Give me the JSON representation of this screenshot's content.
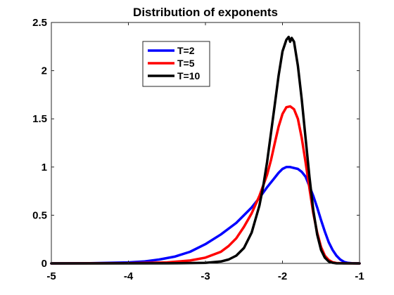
{
  "chart_data": {
    "type": "line",
    "title": "Distribution of exponents",
    "xlabel": "",
    "ylabel": "",
    "xlim": [
      -5,
      -1
    ],
    "ylim": [
      0,
      2.5
    ],
    "xticks": [
      "-5",
      "-4",
      "-3",
      "-2",
      "-1"
    ],
    "yticks": [
      "0",
      "0.5",
      "1",
      "1.5",
      "2",
      "2.5"
    ],
    "grid": false,
    "legend_position": "upper-left",
    "series": [
      {
        "name": "T=2",
        "color": "#0000ff",
        "x": [
          -5.0,
          -4.5,
          -4.0,
          -3.8,
          -3.6,
          -3.4,
          -3.2,
          -3.0,
          -2.8,
          -2.6,
          -2.5,
          -2.4,
          -2.3,
          -2.2,
          -2.1,
          -2.05,
          -2.0,
          -1.95,
          -1.9,
          -1.85,
          -1.8,
          -1.75,
          -1.7,
          -1.65,
          -1.6,
          -1.55,
          -1.5,
          -1.45,
          -1.4,
          -1.35,
          -1.3,
          -1.25,
          -1.2,
          -1.15,
          -1.1,
          -1.0
        ],
        "y": [
          0.0,
          0.002,
          0.01,
          0.02,
          0.04,
          0.07,
          0.12,
          0.2,
          0.3,
          0.42,
          0.5,
          0.58,
          0.68,
          0.79,
          0.89,
          0.94,
          0.98,
          1.0,
          1.0,
          0.99,
          0.98,
          0.95,
          0.9,
          0.8,
          0.7,
          0.58,
          0.45,
          0.33,
          0.22,
          0.14,
          0.08,
          0.04,
          0.015,
          0.005,
          0.002,
          0.0
        ]
      },
      {
        "name": "T=5",
        "color": "#ff0000",
        "x": [
          -5.0,
          -4.0,
          -3.5,
          -3.2,
          -3.0,
          -2.8,
          -2.7,
          -2.6,
          -2.5,
          -2.4,
          -2.3,
          -2.2,
          -2.15,
          -2.1,
          -2.05,
          -2.0,
          -1.95,
          -1.9,
          -1.85,
          -1.8,
          -1.75,
          -1.7,
          -1.65,
          -1.6,
          -1.55,
          -1.5,
          -1.45,
          -1.4,
          -1.35,
          -1.3,
          -1.2,
          -1.0
        ],
        "y": [
          0.0,
          0.002,
          0.01,
          0.03,
          0.06,
          0.12,
          0.18,
          0.26,
          0.38,
          0.52,
          0.7,
          0.92,
          1.07,
          1.25,
          1.42,
          1.55,
          1.62,
          1.63,
          1.6,
          1.5,
          1.3,
          1.05,
          0.78,
          0.52,
          0.32,
          0.17,
          0.08,
          0.035,
          0.012,
          0.004,
          0.001,
          0.0
        ]
      },
      {
        "name": "T=10",
        "color": "#000000",
        "x": [
          -5.0,
          -3.5,
          -3.0,
          -2.8,
          -2.7,
          -2.6,
          -2.5,
          -2.4,
          -2.3,
          -2.25,
          -2.2,
          -2.15,
          -2.1,
          -2.05,
          -2.0,
          -1.95,
          -1.92,
          -1.9,
          -1.88,
          -1.85,
          -1.8,
          -1.75,
          -1.7,
          -1.65,
          -1.6,
          -1.55,
          -1.5,
          -1.45,
          -1.4,
          -1.35,
          -1.3,
          -1.0
        ],
        "y": [
          0.0,
          0.001,
          0.005,
          0.02,
          0.04,
          0.08,
          0.16,
          0.32,
          0.6,
          0.8,
          1.05,
          1.35,
          1.65,
          1.95,
          2.2,
          2.32,
          2.35,
          2.3,
          2.34,
          2.3,
          2.05,
          1.7,
          1.3,
          0.9,
          0.55,
          0.3,
          0.14,
          0.06,
          0.02,
          0.006,
          0.001,
          0.0
        ]
      }
    ]
  }
}
